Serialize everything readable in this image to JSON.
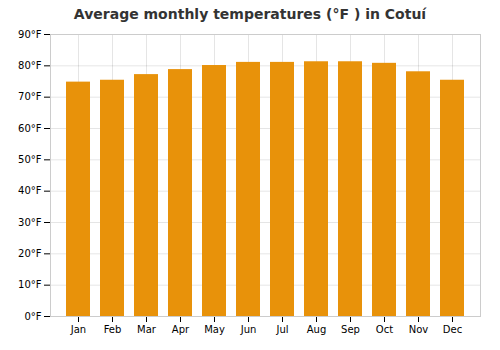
{
  "chart_data": {
    "type": "bar",
    "title": "Average monthly temperatures (°F ) in Cotuí",
    "categories": [
      "Jan",
      "Feb",
      "Mar",
      "Apr",
      "May",
      "Jun",
      "Jul",
      "Aug",
      "Sep",
      "Oct",
      "Nov",
      "Dec"
    ],
    "values": [
      74.8,
      75.4,
      77.2,
      78.8,
      80.1,
      81.1,
      81.1,
      81.3,
      81.3,
      80.8,
      78.1,
      75.4
    ],
    "color": "#E8920A",
    "ylim": [
      0,
      90
    ],
    "yticks": [
      {
        "value": 0,
        "label": "0°F"
      },
      {
        "value": 10,
        "label": "10°F"
      },
      {
        "value": 20,
        "label": "20°F"
      },
      {
        "value": 30,
        "label": "30°F"
      },
      {
        "value": 40,
        "label": "40°F"
      },
      {
        "value": 50,
        "label": "50°F"
      },
      {
        "value": 60,
        "label": "60°F"
      },
      {
        "value": 70,
        "label": "70°F"
      },
      {
        "value": 80,
        "label": "80°F"
      },
      {
        "value": 90,
        "label": "90°F"
      }
    ],
    "grid": true
  }
}
